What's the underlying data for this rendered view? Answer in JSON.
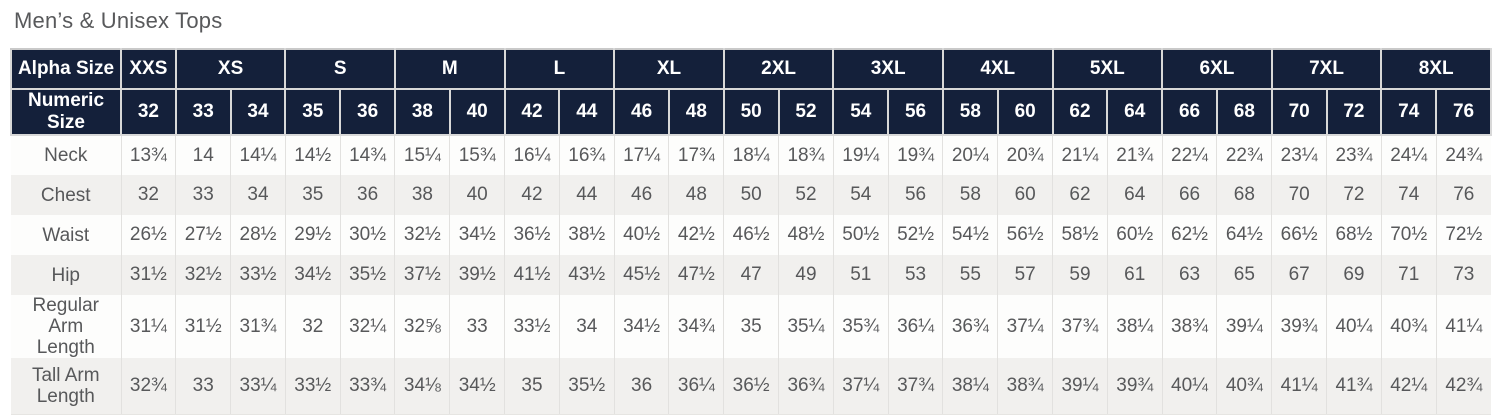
{
  "page_title": "Men’s & Unisex Tops",
  "colors": {
    "header_bg": "#14203a",
    "header_text": "#ffffff",
    "header_border": "#d8d8d8",
    "body_text": "#57585a",
    "title_text": "#58595b",
    "row_bg_white": "#fdfdfc",
    "row_bg_gray": "#f1f0ee",
    "grid_line": "#e2e1df"
  },
  "chart_data": {
    "type": "table",
    "title": "Men’s & Unisex Tops",
    "header": {
      "alpha_label": "Alpha Size",
      "numeric_label": "Numeric Size",
      "alpha_groups": [
        {
          "label": "XXS",
          "span": 1
        },
        {
          "label": "XS",
          "span": 2
        },
        {
          "label": "S",
          "span": 2
        },
        {
          "label": "M",
          "span": 2
        },
        {
          "label": "L",
          "span": 2
        },
        {
          "label": "XL",
          "span": 2
        },
        {
          "label": "2XL",
          "span": 2
        },
        {
          "label": "3XL",
          "span": 2
        },
        {
          "label": "4XL",
          "span": 2
        },
        {
          "label": "5XL",
          "span": 2
        },
        {
          "label": "6XL",
          "span": 2
        },
        {
          "label": "7XL",
          "span": 2
        },
        {
          "label": "8XL",
          "span": 2
        }
      ],
      "numeric_sizes": [
        "32",
        "33",
        "34",
        "35",
        "36",
        "38",
        "40",
        "42",
        "44",
        "46",
        "48",
        "50",
        "52",
        "54",
        "56",
        "58",
        "60",
        "62",
        "64",
        "66",
        "68",
        "70",
        "72",
        "74",
        "76"
      ]
    },
    "rows": [
      {
        "label": "Neck",
        "values": [
          "13¾",
          "14",
          "14¼",
          "14½",
          "14¾",
          "15¼",
          "15¾",
          "16¼",
          "16¾",
          "17¼",
          "17¾",
          "18¼",
          "18¾",
          "19¼",
          "19¾",
          "20¼",
          "20¾",
          "21¼",
          "21¾",
          "22¼",
          "22¾",
          "23¼",
          "23¾",
          "24¼",
          "24¾"
        ]
      },
      {
        "label": "Chest",
        "values": [
          "32",
          "33",
          "34",
          "35",
          "36",
          "38",
          "40",
          "42",
          "44",
          "46",
          "48",
          "50",
          "52",
          "54",
          "56",
          "58",
          "60",
          "62",
          "64",
          "66",
          "68",
          "70",
          "72",
          "74",
          "76"
        ]
      },
      {
        "label": "Waist",
        "values": [
          "26½",
          "27½",
          "28½",
          "29½",
          "30½",
          "32½",
          "34½",
          "36½",
          "38½",
          "40½",
          "42½",
          "46½",
          "48½",
          "50½",
          "52½",
          "54½",
          "56½",
          "58½",
          "60½",
          "62½",
          "64½",
          "66½",
          "68½",
          "70½",
          "72½"
        ]
      },
      {
        "label": "Hip",
        "values": [
          "31½",
          "32½",
          "33½",
          "34½",
          "35½",
          "37½",
          "39½",
          "41½",
          "43½",
          "45½",
          "47½",
          "47",
          "49",
          "51",
          "53",
          "55",
          "57",
          "59",
          "61",
          "63",
          "65",
          "67",
          "69",
          "71",
          "73"
        ]
      },
      {
        "label": "Regular Arm Length",
        "values": [
          "31¼",
          "31½",
          "31¾",
          "32",
          "32¼",
          "32⅝",
          "33",
          "33½",
          "34",
          "34½",
          "34¾",
          "35",
          "35¼",
          "35¾",
          "36¼",
          "36¾",
          "37¼",
          "37¾",
          "38¼",
          "38¾",
          "39¼",
          "39¾",
          "40¼",
          "40¾",
          "41¼"
        ]
      },
      {
        "label": "Tall Arm Length",
        "values": [
          "32¾",
          "33",
          "33¼",
          "33½",
          "33¾",
          "34⅛",
          "34½",
          "35",
          "35½",
          "36",
          "36¼",
          "36½",
          "36¾",
          "37¼",
          "37¾",
          "38¼",
          "38¾",
          "39¼",
          "39¾",
          "40¼",
          "40¾",
          "41¼",
          "41¾",
          "42¼",
          "42¾"
        ]
      }
    ]
  }
}
